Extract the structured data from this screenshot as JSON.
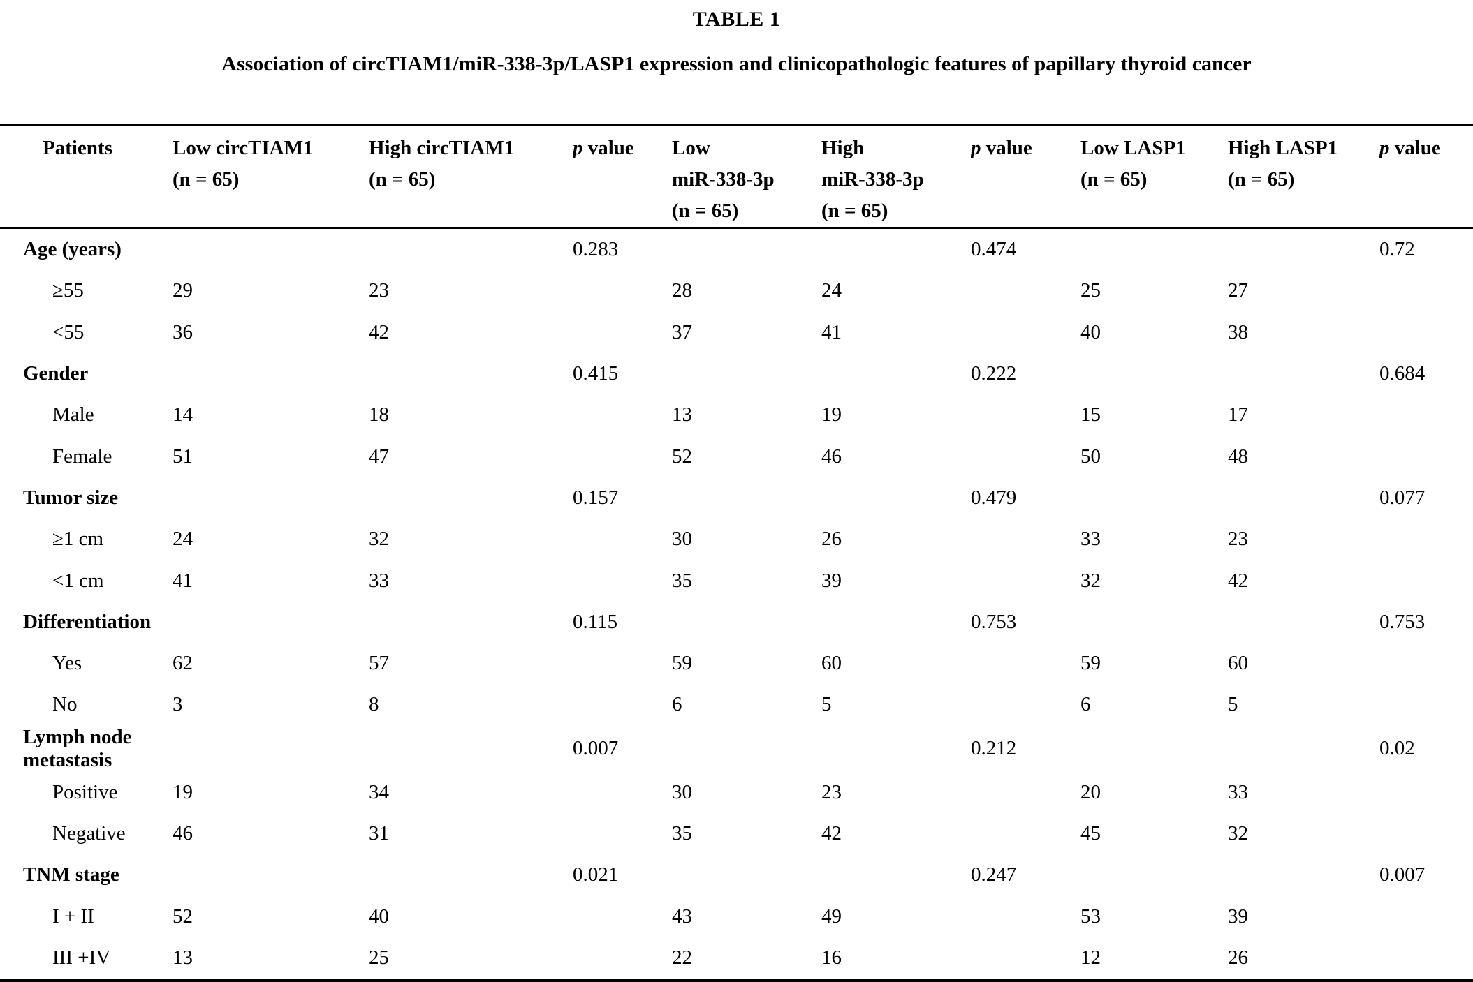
{
  "title": "TABLE 1",
  "caption": "Association of circTIAM1/miR-338-3p/LASP1 expression and clinicopathologic features of papillary thyroid cancer",
  "header": {
    "patients_label": "Patients",
    "data_columns": [
      {
        "name": "low-circtiam1",
        "lines": [
          "Low circTIAM1"
        ],
        "n": "(n = 65)"
      },
      {
        "name": "high-circtiam1",
        "lines": [
          "High circTIAM1"
        ],
        "n": "(n = 65)"
      },
      {
        "name": "p-value-circtiam1",
        "p": "p",
        "rest": "value"
      },
      {
        "name": "low-mir-338-3p",
        "lines": [
          "Low",
          "miR-338-3p"
        ],
        "n": "(n = 65)"
      },
      {
        "name": "high-mir-338-3p",
        "lines": [
          "High",
          "miR-338-3p"
        ],
        "n": "(n = 65)"
      },
      {
        "name": "p-value-mir-338-3p",
        "p": "p",
        "rest": "value"
      },
      {
        "name": "low-lasp1",
        "lines": [
          "Low LASP1"
        ],
        "n": "(n = 65)"
      },
      {
        "name": "high-lasp1",
        "lines": [
          "High LASP1"
        ],
        "n": "(n = 65)"
      },
      {
        "name": "p-value-lasp1",
        "p": "p",
        "rest": "value"
      }
    ]
  },
  "sections": [
    {
      "label": "Age (years)",
      "p_values": [
        "0.283",
        "0.474",
        "0.72"
      ],
      "rows": [
        {
          "label": "≥55",
          "values": [
            "29",
            "23",
            "28",
            "24",
            "25",
            "27"
          ]
        },
        {
          "label": "<55",
          "values": [
            "36",
            "42",
            "37",
            "41",
            "40",
            "38"
          ]
        }
      ]
    },
    {
      "label": "Gender",
      "p_values": [
        "0.415",
        "0.222",
        "0.684"
      ],
      "rows": [
        {
          "label": "Male",
          "values": [
            "14",
            "18",
            "13",
            "19",
            "15",
            "17"
          ]
        },
        {
          "label": "Female",
          "values": [
            "51",
            "47",
            "52",
            "46",
            "50",
            "48"
          ]
        }
      ]
    },
    {
      "label": "Tumor size",
      "p_values": [
        "0.157",
        "0.479",
        "0.077"
      ],
      "rows": [
        {
          "label": "≥1 cm",
          "values": [
            "24",
            "32",
            "30",
            "26",
            "33",
            "23"
          ]
        },
        {
          "label": "<1 cm",
          "values": [
            "41",
            "33",
            "35",
            "39",
            "32",
            "42"
          ]
        }
      ]
    },
    {
      "label": "Differentiation",
      "p_values": [
        "0.115",
        "0.753",
        "0.753"
      ],
      "rows": [
        {
          "label": "Yes",
          "values": [
            "62",
            "57",
            "59",
            "60",
            "59",
            "60"
          ]
        },
        {
          "label": "No",
          "values": [
            "3",
            "8",
            "6",
            "5",
            "6",
            "5"
          ]
        }
      ]
    },
    {
      "label": "Lymph node metastasis",
      "p_values": [
        "0.007",
        "0.212",
        "0.02"
      ],
      "rows": [
        {
          "label": "Positive",
          "values": [
            "19",
            "34",
            "30",
            "23",
            "20",
            "33"
          ]
        },
        {
          "label": "Negative",
          "values": [
            "46",
            "31",
            "35",
            "42",
            "45",
            "32"
          ]
        }
      ]
    },
    {
      "label": "TNM stage",
      "p_values": [
        "0.021",
        "0.247",
        "0.007"
      ],
      "rows": [
        {
          "label": "I + II",
          "values": [
            "52",
            "40",
            "43",
            "49",
            "53",
            "39"
          ]
        },
        {
          "label": "III +IV",
          "values": [
            "13",
            "25",
            "22",
            "16",
            "12",
            "26"
          ]
        }
      ]
    }
  ]
}
